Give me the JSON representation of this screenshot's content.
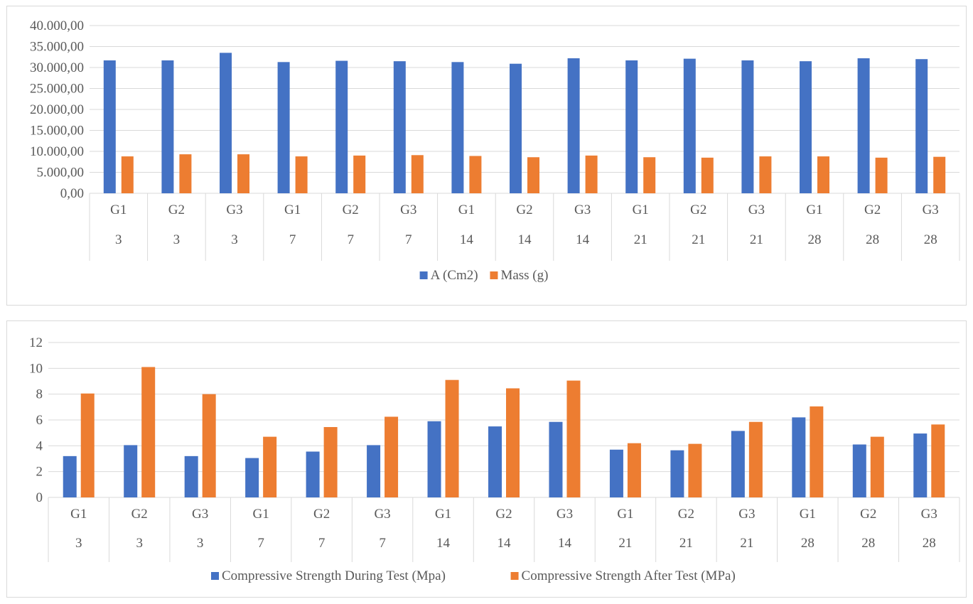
{
  "chart_data": [
    {
      "type": "bar",
      "title": "",
      "xlabel": "",
      "ylabel": "",
      "ylim": [
        0,
        40000
      ],
      "y_ticks": [
        "0,00",
        "5.000,00",
        "10.000,00",
        "15.000,00",
        "20.000,00",
        "25.000,00",
        "30.000,00",
        "35.000,00",
        "40.000,00"
      ],
      "grid": true,
      "legend_position": "bottom",
      "categories": [
        {
          "group": "G1",
          "day": "3"
        },
        {
          "group": "G2",
          "day": "3"
        },
        {
          "group": "G3",
          "day": "3"
        },
        {
          "group": "G1",
          "day": "7"
        },
        {
          "group": "G2",
          "day": "7"
        },
        {
          "group": "G3",
          "day": "7"
        },
        {
          "group": "G1",
          "day": "14"
        },
        {
          "group": "G2",
          "day": "14"
        },
        {
          "group": "G3",
          "day": "14"
        },
        {
          "group": "G1",
          "day": "21"
        },
        {
          "group": "G2",
          "day": "21"
        },
        {
          "group": "G3",
          "day": "21"
        },
        {
          "group": "G1",
          "day": "28"
        },
        {
          "group": "G2",
          "day": "28"
        },
        {
          "group": "G3",
          "day": "28"
        }
      ],
      "series": [
        {
          "name": "A (Cm2)",
          "color": "#4472c4",
          "values": [
            31700,
            31700,
            33500,
            31300,
            31600,
            31500,
            31300,
            30900,
            32200,
            31700,
            32100,
            31700,
            31500,
            32200,
            32000
          ]
        },
        {
          "name": "Mass (g)",
          "color": "#ed7d31",
          "values": [
            8800,
            9300,
            9300,
            8800,
            9000,
            9100,
            8900,
            8600,
            9000,
            8600,
            8500,
            8800,
            8800,
            8500,
            8700
          ]
        }
      ]
    },
    {
      "type": "bar",
      "title": "",
      "xlabel": "",
      "ylabel": "",
      "ylim": [
        0,
        12
      ],
      "y_ticks": [
        "0",
        "2",
        "4",
        "6",
        "8",
        "10",
        "12"
      ],
      "grid": true,
      "legend_position": "bottom",
      "categories": [
        {
          "group": "G1",
          "day": "3"
        },
        {
          "group": "G2",
          "day": "3"
        },
        {
          "group": "G3",
          "day": "3"
        },
        {
          "group": "G1",
          "day": "7"
        },
        {
          "group": "G2",
          "day": "7"
        },
        {
          "group": "G3",
          "day": "7"
        },
        {
          "group": "G1",
          "day": "14"
        },
        {
          "group": "G2",
          "day": "14"
        },
        {
          "group": "G3",
          "day": "14"
        },
        {
          "group": "G1",
          "day": "21"
        },
        {
          "group": "G2",
          "day": "21"
        },
        {
          "group": "G3",
          "day": "21"
        },
        {
          "group": "G1",
          "day": "28"
        },
        {
          "group": "G2",
          "day": "28"
        },
        {
          "group": "G3",
          "day": "28"
        }
      ],
      "series": [
        {
          "name": "Compressive Strength During Test (Mpa)",
          "color": "#4472c4",
          "values": [
            3.2,
            4.05,
            3.2,
            3.05,
            3.55,
            4.05,
            5.9,
            5.5,
            5.85,
            3.7,
            3.65,
            5.15,
            6.2,
            4.1,
            4.95
          ]
        },
        {
          "name": "Compressive Strength After Test (MPa)",
          "color": "#ed7d31",
          "values": [
            8.05,
            10.1,
            8.0,
            4.7,
            5.45,
            6.25,
            9.1,
            8.45,
            9.05,
            4.2,
            4.15,
            5.85,
            7.05,
            4.7,
            5.65
          ]
        }
      ]
    }
  ]
}
